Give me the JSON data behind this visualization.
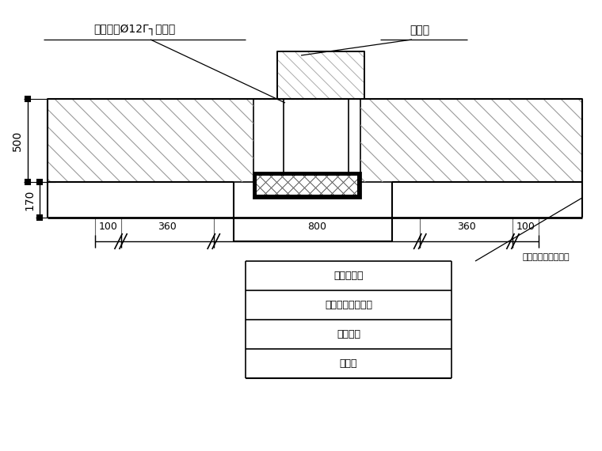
{
  "bg_color": "#ffffff",
  "line_color": "#000000",
  "title_label1": "附加双向Ø12Γ┐型盖筋",
  "title_label2": "铅丝网",
  "dim_500": "500",
  "dim_170": "170",
  "dim_100_left": "100",
  "dim_360_left": "360",
  "dim_800": "800",
  "dim_360_right": "360",
  "dim_100_right": "100",
  "note_right": "先浇与底板同标号砼",
  "label1": "混凝土底板",
  "label2": "外贴式橡胶止水带",
  "label3": "防水卷材",
  "label4": "砼垫层",
  "figsize": [
    7.6,
    5.7
  ],
  "dpi": 100
}
